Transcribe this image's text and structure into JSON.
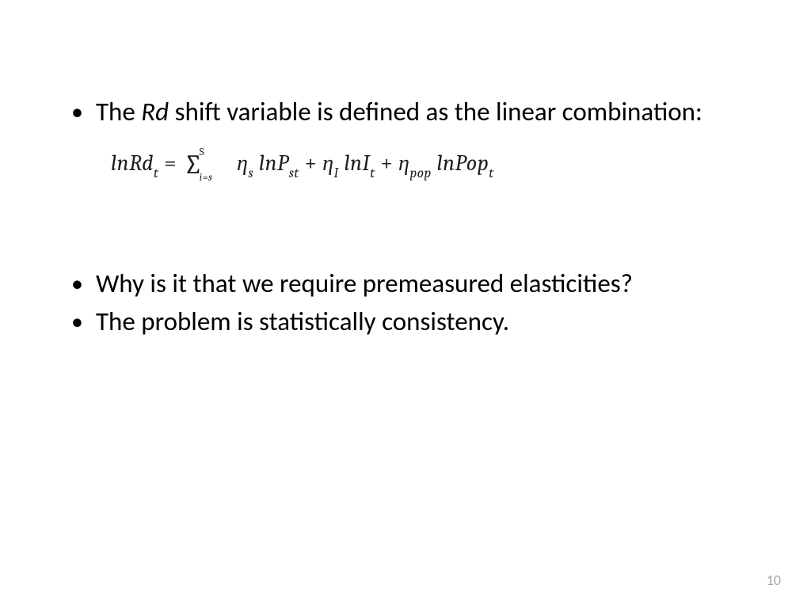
{
  "slide": {
    "background_color": "#ffffff",
    "text_color": "#000000",
    "body_fontsize": 33,
    "font_family": "Calibri",
    "page_number": "10",
    "page_number_color": "#a6a6a6",
    "page_number_fontsize": 18
  },
  "bullets": {
    "b1_pre": "The ",
    "b1_em": "Rd",
    "b1_post": " shift variable is defined as the linear combination:",
    "b2": "Why is it that we require premeasured elasticities?",
    "b3": "The problem is statistically consistency."
  },
  "formula": {
    "font_family": "Cambria",
    "fontsize": 28,
    "lhs_fn": "ln",
    "lhs_var": "Rd",
    "lhs_sub": "t",
    "eq": " = ",
    "sum_upper": "S",
    "sum_lower": "i=s",
    "eta": "η",
    "eta1_sub": "s",
    "t1_fn": "ln",
    "t1_var": "P",
    "t1_sub": "st",
    "plus": " + ",
    "eta2_sub": "I",
    "t2_fn": "ln",
    "t2_var": "I",
    "t2_sub": "t",
    "eta3_sub": "pop",
    "t3_fn": "ln",
    "t3_var": "Pop",
    "t3_sub": "t"
  }
}
